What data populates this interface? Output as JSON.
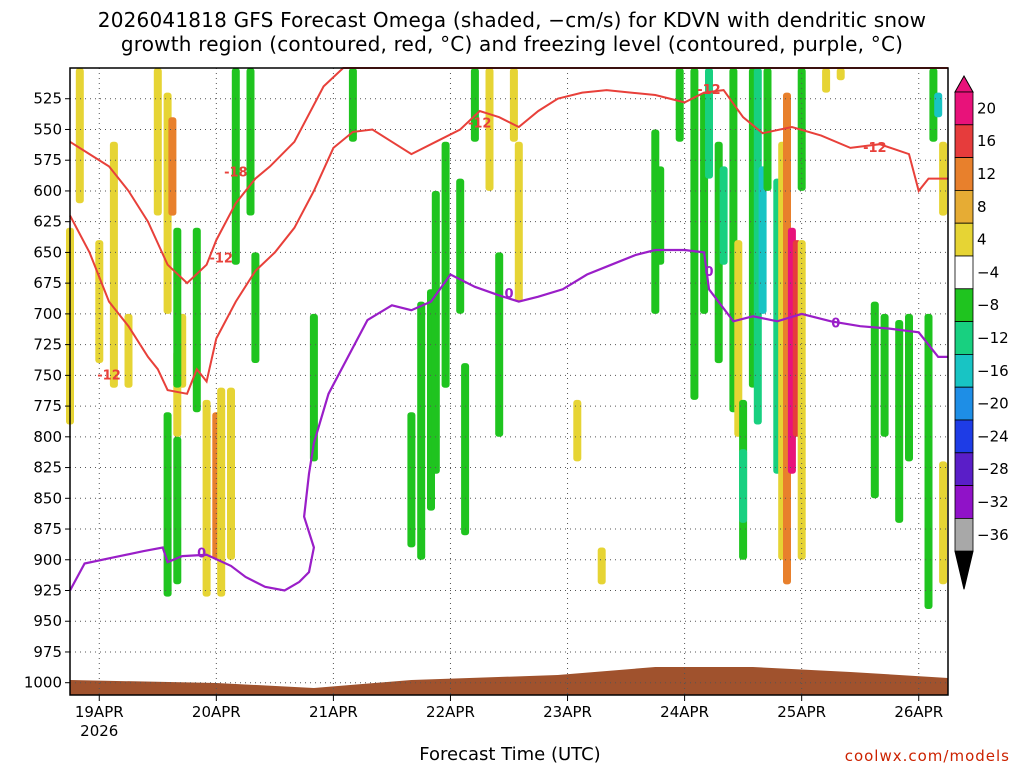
{
  "title_line1": "2026041818 GFS Forecast Omega (shaded, −cm/s) for KDVN with dendritic snow",
  "title_line2": "growth region (contoured, red, °C) and freezing level (contoured, purple, °C)",
  "x_axis_title": "Forecast Time (UTC)",
  "credit": "coolwx.com/models",
  "chart_data": {
    "type": "heatmap",
    "title": "2026041818 GFS Forecast Omega (shaded, −cm/s) for KDVN with dendritic snow growth region (contoured, red, °C) and freezing level (contoured, purple, °C)",
    "xlabel": "Forecast Time (UTC)",
    "ylabel": "",
    "x_range_hours": [
      0,
      180
    ],
    "y_range_hpa": [
      1010,
      500
    ],
    "y_ticks": [
      525,
      550,
      575,
      600,
      625,
      650,
      675,
      700,
      725,
      750,
      775,
      800,
      825,
      850,
      875,
      900,
      925,
      950,
      975,
      1000
    ],
    "x_ticks": [
      {
        "hour": 6,
        "label": "19APR",
        "sublabel": "2026"
      },
      {
        "hour": 30,
        "label": "20APR"
      },
      {
        "hour": 54,
        "label": "21APR"
      },
      {
        "hour": 78,
        "label": "22APR"
      },
      {
        "hour": 102,
        "label": "23APR"
      },
      {
        "hour": 126,
        "label": "24APR"
      },
      {
        "hour": 150,
        "label": "25APR"
      },
      {
        "hour": 174,
        "label": "26APR"
      }
    ],
    "grid": true,
    "colorbar": {
      "labels": [
        "20",
        "16",
        "12",
        "8",
        "4",
        "−4",
        "−8",
        "−12",
        "−16",
        "−20",
        "−24",
        "−28",
        "−32",
        "−36"
      ],
      "colors": [
        "#e8127a",
        "#e63c3c",
        "#e8802c",
        "#e6ac34",
        "#e6d434",
        "#ffffff",
        "#1fc41f",
        "#18d080",
        "#18c4c4",
        "#1e8ee6",
        "#1e3ce6",
        "#5a1ec8",
        "#9012c8",
        "#a8a8a8"
      ]
    },
    "contour_labels": [
      "-18",
      "-12",
      "-12",
      "-12",
      "-12",
      "-12",
      "0",
      "0",
      "0",
      "0"
    ],
    "freezing_level_hpa": [
      [
        0,
        925
      ],
      [
        3,
        903
      ],
      [
        9,
        898
      ],
      [
        15,
        893
      ],
      [
        19,
        890
      ],
      [
        20,
        902
      ],
      [
        23,
        897
      ],
      [
        28,
        896
      ],
      [
        33,
        905
      ],
      [
        36,
        914
      ],
      [
        40,
        922
      ],
      [
        44,
        925
      ],
      [
        47,
        918
      ],
      [
        49,
        910
      ],
      [
        50,
        890
      ],
      [
        48,
        865
      ],
      [
        49,
        830
      ],
      [
        50,
        805
      ],
      [
        53,
        765
      ],
      [
        57,
        735
      ],
      [
        61,
        705
      ],
      [
        66,
        693
      ],
      [
        70,
        697
      ],
      [
        74,
        690
      ],
      [
        78,
        668
      ],
      [
        83,
        678
      ],
      [
        88,
        685
      ],
      [
        92,
        690
      ],
      [
        96,
        686
      ],
      [
        101,
        680
      ],
      [
        106,
        668
      ],
      [
        111,
        660
      ],
      [
        116,
        652
      ],
      [
        120,
        648
      ],
      [
        126,
        648
      ],
      [
        130,
        650
      ],
      [
        131,
        680
      ],
      [
        136,
        706
      ],
      [
        140,
        702
      ],
      [
        145,
        706
      ],
      [
        150,
        700
      ],
      [
        156,
        706
      ],
      [
        162,
        710
      ],
      [
        168,
        712
      ],
      [
        174,
        715
      ],
      [
        178,
        735
      ],
      [
        180,
        735
      ]
    ],
    "dgz_upper_hpa": [
      [
        0,
        560
      ],
      [
        4,
        570
      ],
      [
        8,
        580
      ],
      [
        12,
        600
      ],
      [
        16,
        625
      ],
      [
        20,
        660
      ],
      [
        24,
        675
      ],
      [
        28,
        660
      ],
      [
        30,
        640
      ],
      [
        34,
        610
      ],
      [
        38,
        590
      ],
      [
        41,
        580
      ],
      [
        46,
        560
      ],
      [
        52,
        515
      ],
      [
        56,
        500
      ],
      [
        70,
        500
      ],
      [
        80,
        500
      ],
      [
        90,
        500
      ],
      [
        100,
        500
      ],
      [
        110,
        500
      ],
      [
        120,
        500
      ],
      [
        140,
        500
      ],
      [
        160,
        500
      ],
      [
        172,
        500
      ],
      [
        180,
        500
      ]
    ],
    "dgz_lower_hpa": [
      [
        0,
        620
      ],
      [
        4,
        650
      ],
      [
        8,
        690
      ],
      [
        12,
        710
      ],
      [
        16,
        735
      ],
      [
        18,
        745
      ],
      [
        20,
        762
      ],
      [
        24,
        765
      ],
      [
        26,
        745
      ],
      [
        28,
        755
      ],
      [
        30,
        720
      ],
      [
        34,
        690
      ],
      [
        38,
        665
      ],
      [
        42,
        650
      ],
      [
        46,
        630
      ],
      [
        50,
        600
      ],
      [
        54,
        565
      ],
      [
        58,
        552
      ],
      [
        62,
        550
      ],
      [
        66,
        560
      ],
      [
        70,
        570
      ],
      [
        75,
        560
      ],
      [
        80,
        550
      ],
      [
        84,
        535
      ],
      [
        88,
        540
      ],
      [
        92,
        548
      ],
      [
        96,
        535
      ],
      [
        100,
        525
      ],
      [
        105,
        520
      ],
      [
        110,
        518
      ],
      [
        115,
        520
      ],
      [
        120,
        522
      ],
      [
        126,
        528
      ],
      [
        130,
        520
      ],
      [
        134,
        518
      ],
      [
        138,
        540
      ],
      [
        142,
        553
      ],
      [
        148,
        548
      ],
      [
        154,
        555
      ],
      [
        160,
        565
      ],
      [
        166,
        562
      ],
      [
        172,
        570
      ],
      [
        174,
        600
      ],
      [
        176,
        590
      ],
      [
        180,
        590
      ]
    ]
  }
}
